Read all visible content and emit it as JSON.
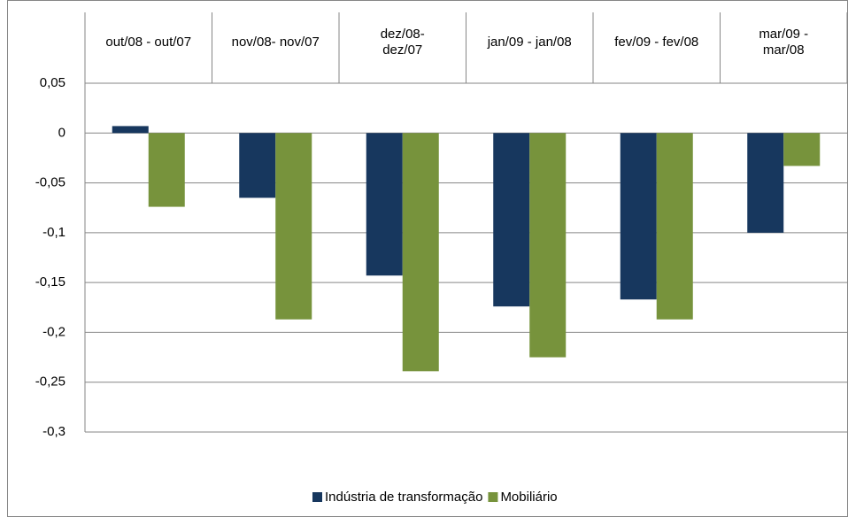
{
  "chart_data": {
    "type": "bar",
    "categories": [
      "out/08 - out/07",
      "nov/08- nov/07",
      "dez/08-\ndez/07",
      "jan/09 - jan/08",
      "fev/09 - fev/08",
      "mar/09 -\nmar/08"
    ],
    "series": [
      {
        "name": "Indústria de transformação",
        "color": "#17375e",
        "values": [
          0.007,
          -0.065,
          -0.143,
          -0.174,
          -0.167,
          -0.1
        ]
      },
      {
        "name": "Mobiliário",
        "color": "#77933c",
        "values": [
          -0.074,
          -0.187,
          -0.239,
          -0.225,
          -0.187,
          -0.033
        ]
      }
    ],
    "ylim": [
      -0.3,
      0.05
    ],
    "yticks": [
      {
        "value": 0.05,
        "label": "0,05"
      },
      0,
      {
        "value": -0.05,
        "label": "-0,05"
      },
      {
        "value": -0.1,
        "label": "-0,1"
      },
      {
        "value": -0.15,
        "label": "-0,15"
      },
      {
        "value": -0.2,
        "label": "-0,2"
      },
      {
        "value": -0.25,
        "label": "-0,25"
      },
      {
        "value": -0.3,
        "label": "-0,3"
      }
    ],
    "grid": true,
    "legend": "bottom"
  }
}
